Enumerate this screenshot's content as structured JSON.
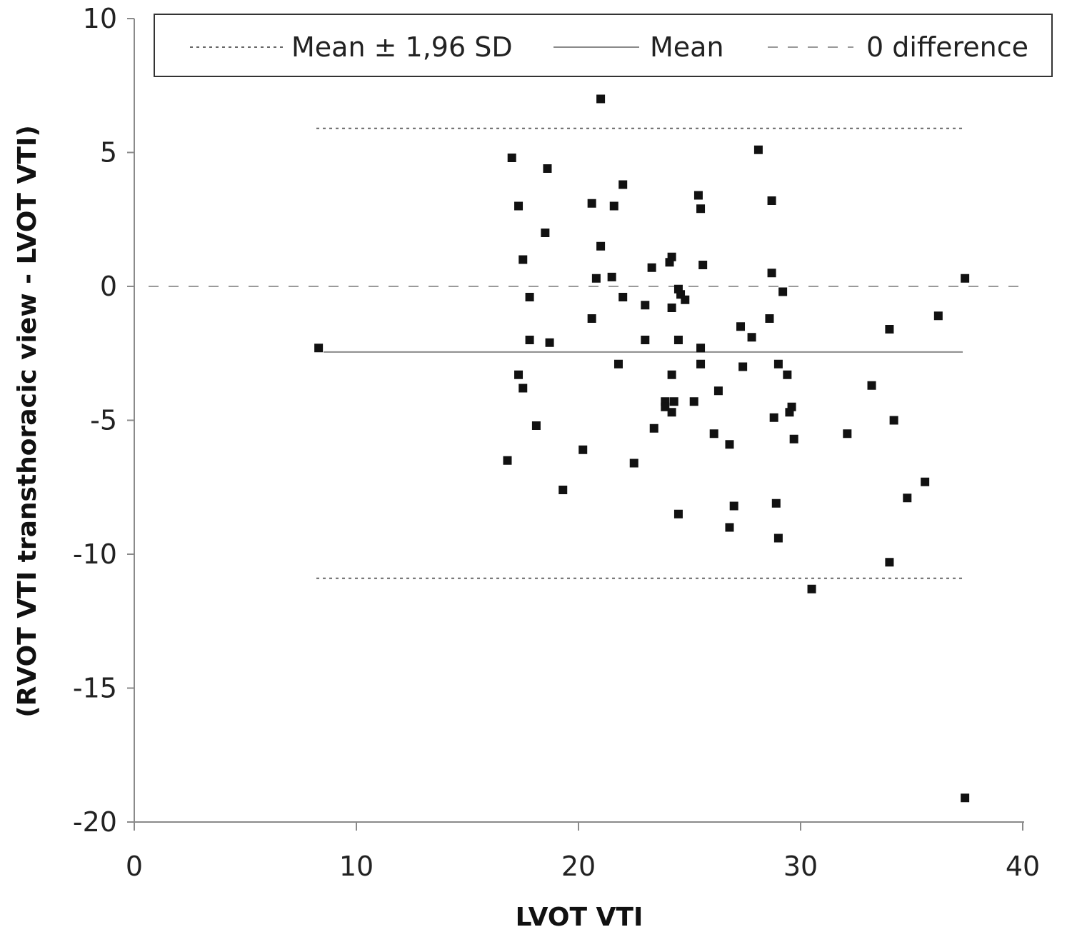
{
  "chart_data": {
    "type": "scatter",
    "title": "",
    "xlabel": "LVOT VTI",
    "ylabel": "(RVOT VTI transthoracic view - LVOT VTI)",
    "xlim": [
      0,
      40
    ],
    "ylim": [
      -20,
      10
    ],
    "x_ticks": [
      "0",
      "10",
      "20",
      "30",
      "40"
    ],
    "y_ticks": [
      "10",
      "5",
      "0",
      "-5",
      "-10",
      "-15",
      "-20"
    ],
    "grid": false,
    "legend_position": "top",
    "legend": [
      {
        "label": "Mean ± 1,96 SD",
        "style": "dotted"
      },
      {
        "label": "Mean",
        "style": "solid"
      },
      {
        "label": "0 difference",
        "style": "dashed"
      }
    ],
    "reference_lines": {
      "upper_limit": 5.9,
      "lower_limit": -10.9,
      "mean": -2.45,
      "zero": 0,
      "x_range": [
        8.2,
        37.3
      ]
    },
    "points": [
      [
        8.3,
        -2.3
      ],
      [
        17.0,
        4.8
      ],
      [
        17.3,
        3.0
      ],
      [
        17.5,
        1.0
      ],
      [
        17.8,
        -0.4
      ],
      [
        17.8,
        -2.0
      ],
      [
        17.3,
        -3.3
      ],
      [
        17.5,
        -3.8
      ],
      [
        18.1,
        -5.2
      ],
      [
        16.8,
        -6.5
      ],
      [
        18.6,
        4.4
      ],
      [
        18.5,
        2.0
      ],
      [
        18.7,
        -2.1
      ],
      [
        19.3,
        -7.6
      ],
      [
        20.2,
        -6.1
      ],
      [
        20.6,
        3.1
      ],
      [
        20.6,
        -1.2
      ],
      [
        20.8,
        0.3
      ],
      [
        21.0,
        1.5
      ],
      [
        21.0,
        7.0
      ],
      [
        21.5,
        0.35
      ],
      [
        21.6,
        3.0
      ],
      [
        21.8,
        -2.9
      ],
      [
        22.0,
        3.8
      ],
      [
        22.0,
        -0.4
      ],
      [
        22.5,
        -6.6
      ],
      [
        23.0,
        -0.7
      ],
      [
        23.0,
        -2.0
      ],
      [
        23.3,
        0.7
      ],
      [
        23.4,
        -5.3
      ],
      [
        23.9,
        -4.3
      ],
      [
        23.9,
        -4.5
      ],
      [
        24.1,
        0.9
      ],
      [
        24.2,
        1.1
      ],
      [
        24.2,
        -0.8
      ],
      [
        24.2,
        -3.3
      ],
      [
        24.2,
        -4.7
      ],
      [
        24.3,
        -4.3
      ],
      [
        24.5,
        -0.1
      ],
      [
        24.6,
        -0.3
      ],
      [
        24.5,
        -2.0
      ],
      [
        24.5,
        -8.5
      ],
      [
        24.8,
        -0.5
      ],
      [
        25.2,
        -4.3
      ],
      [
        25.4,
        3.4
      ],
      [
        25.5,
        2.9
      ],
      [
        25.6,
        0.8
      ],
      [
        25.5,
        -2.3
      ],
      [
        25.5,
        -2.9
      ],
      [
        26.1,
        -5.5
      ],
      [
        26.3,
        -3.9
      ],
      [
        26.8,
        -5.9
      ],
      [
        26.8,
        -9.0
      ],
      [
        27.0,
        -8.2
      ],
      [
        27.3,
        -1.5
      ],
      [
        27.4,
        -3.0
      ],
      [
        27.8,
        -1.9
      ],
      [
        28.1,
        5.1
      ],
      [
        28.7,
        3.2
      ],
      [
        28.7,
        0.5
      ],
      [
        28.6,
        -1.2
      ],
      [
        28.8,
        -4.9
      ],
      [
        29.0,
        -2.9
      ],
      [
        28.9,
        -8.1
      ],
      [
        29.0,
        -9.4
      ],
      [
        29.2,
        -0.2
      ],
      [
        29.4,
        -3.3
      ],
      [
        29.5,
        -4.7
      ],
      [
        29.6,
        -4.5
      ],
      [
        29.7,
        -5.7
      ],
      [
        30.5,
        -11.3
      ],
      [
        32.1,
        -5.5
      ],
      [
        33.2,
        -3.7
      ],
      [
        34.0,
        -1.6
      ],
      [
        34.0,
        -10.3
      ],
      [
        34.2,
        -5.0
      ],
      [
        34.8,
        -7.9
      ],
      [
        35.6,
        -7.3
      ],
      [
        36.2,
        -1.1
      ],
      [
        37.4,
        0.3
      ],
      [
        37.4,
        -19.1
      ]
    ]
  }
}
